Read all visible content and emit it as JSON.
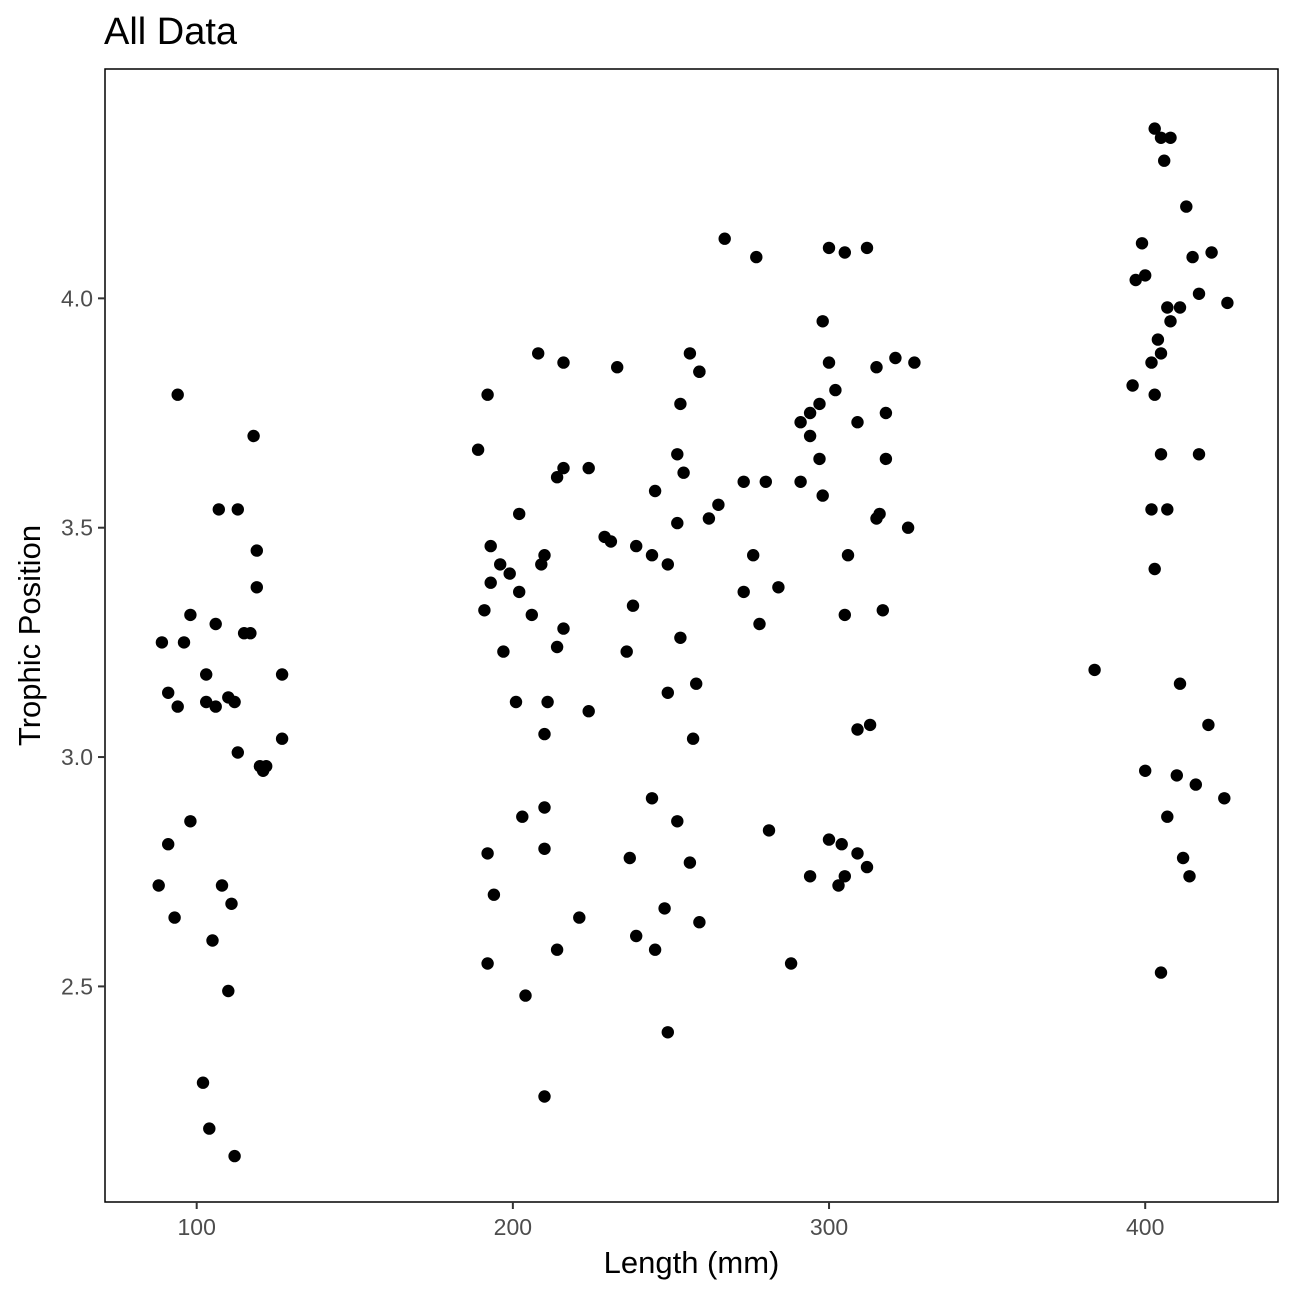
{
  "chart_data": {
    "type": "scatter",
    "title": "All Data",
    "xlabel": "Length (mm)",
    "ylabel": "Trophic Position",
    "xlim": [
      71,
      442
    ],
    "ylim": [
      2.03,
      4.5
    ],
    "xticks": [
      100,
      200,
      300,
      400
    ],
    "xtick_labels": [
      "100",
      "200",
      "300",
      "400"
    ],
    "yticks": [
      2.5,
      3.0,
      3.5,
      4.0
    ],
    "ytick_labels": [
      "2.5",
      "3.0",
      "3.5",
      "4.0"
    ],
    "grid": false,
    "point_color": "#000000",
    "series": [
      {
        "points": [
          [
            94,
            3.79
          ],
          [
            118,
            3.7
          ],
          [
            107,
            3.54
          ],
          [
            113,
            3.54
          ],
          [
            119,
            3.45
          ],
          [
            119,
            3.37
          ],
          [
            98,
            3.31
          ],
          [
            106,
            3.29
          ],
          [
            115,
            3.27
          ],
          [
            117,
            3.27
          ],
          [
            89,
            3.25
          ],
          [
            96,
            3.25
          ],
          [
            103,
            3.18
          ],
          [
            127,
            3.18
          ],
          [
            91,
            3.14
          ],
          [
            94,
            3.11
          ],
          [
            103,
            3.12
          ],
          [
            106,
            3.11
          ],
          [
            110,
            3.13
          ],
          [
            112,
            3.12
          ],
          [
            127,
            3.04
          ],
          [
            113,
            3.01
          ],
          [
            120,
            2.98
          ],
          [
            122,
            2.98
          ],
          [
            121,
            2.97
          ],
          [
            98,
            2.86
          ],
          [
            91,
            2.81
          ],
          [
            88,
            2.72
          ],
          [
            108,
            2.72
          ],
          [
            111,
            2.68
          ],
          [
            93,
            2.65
          ],
          [
            105,
            2.6
          ],
          [
            110,
            2.49
          ],
          [
            102,
            2.29
          ],
          [
            104,
            2.19
          ],
          [
            112,
            2.13
          ],
          [
            208,
            3.88
          ],
          [
            216,
            3.86
          ],
          [
            233,
            3.85
          ],
          [
            192,
            3.79
          ],
          [
            189,
            3.67
          ],
          [
            214,
            3.61
          ],
          [
            216,
            3.63
          ],
          [
            224,
            3.63
          ],
          [
            202,
            3.53
          ],
          [
            229,
            3.48
          ],
          [
            231,
            3.47
          ],
          [
            193,
            3.46
          ],
          [
            239,
            3.46
          ],
          [
            244,
            3.44
          ],
          [
            210,
            3.44
          ],
          [
            209,
            3.42
          ],
          [
            196,
            3.42
          ],
          [
            199,
            3.4
          ],
          [
            193,
            3.38
          ],
          [
            202,
            3.36
          ],
          [
            191,
            3.32
          ],
          [
            206,
            3.31
          ],
          [
            216,
            3.28
          ],
          [
            214,
            3.24
          ],
          [
            238,
            3.33
          ],
          [
            236,
            3.23
          ],
          [
            197,
            3.23
          ],
          [
            211,
            3.12
          ],
          [
            201,
            3.12
          ],
          [
            224,
            3.1
          ],
          [
            210,
            3.05
          ],
          [
            210,
            2.89
          ],
          [
            203,
            2.87
          ],
          [
            210,
            2.8
          ],
          [
            192,
            2.79
          ],
          [
            194,
            2.7
          ],
          [
            221,
            2.65
          ],
          [
            214,
            2.58
          ],
          [
            192,
            2.55
          ],
          [
            204,
            2.48
          ],
          [
            210,
            2.26
          ],
          [
            237,
            2.78
          ],
          [
            239,
            2.61
          ],
          [
            245,
            2.58
          ],
          [
            244,
            2.91
          ],
          [
            267,
            4.13
          ],
          [
            277,
            4.09
          ],
          [
            300,
            4.11
          ],
          [
            305,
            4.1
          ],
          [
            312,
            4.11
          ],
          [
            256,
            3.88
          ],
          [
            259,
            3.84
          ],
          [
            259,
            3.84
          ],
          [
            253,
            3.77
          ],
          [
            298,
            3.95
          ],
          [
            300,
            3.86
          ],
          [
            315,
            3.85
          ],
          [
            321,
            3.87
          ],
          [
            327,
            3.86
          ],
          [
            302,
            3.8
          ],
          [
            297,
            3.77
          ],
          [
            294,
            3.75
          ],
          [
            291,
            3.73
          ],
          [
            294,
            3.7
          ],
          [
            309,
            3.73
          ],
          [
            318,
            3.75
          ],
          [
            252,
            3.66
          ],
          [
            254,
            3.62
          ],
          [
            297,
            3.65
          ],
          [
            318,
            3.65
          ],
          [
            245,
            3.58
          ],
          [
            273,
            3.6
          ],
          [
            280,
            3.6
          ],
          [
            291,
            3.6
          ],
          [
            298,
            3.57
          ],
          [
            265,
            3.55
          ],
          [
            252,
            3.51
          ],
          [
            262,
            3.52
          ],
          [
            315,
            3.52
          ],
          [
            316,
            3.53
          ],
          [
            325,
            3.5
          ],
          [
            276,
            3.44
          ],
          [
            306,
            3.44
          ],
          [
            249,
            3.42
          ],
          [
            273,
            3.36
          ],
          [
            284,
            3.37
          ],
          [
            278,
            3.29
          ],
          [
            305,
            3.31
          ],
          [
            317,
            3.32
          ],
          [
            253,
            3.26
          ],
          [
            258,
            3.16
          ],
          [
            249,
            3.14
          ],
          [
            257,
            3.04
          ],
          [
            309,
            3.06
          ],
          [
            313,
            3.07
          ],
          [
            252,
            2.86
          ],
          [
            281,
            2.84
          ],
          [
            300,
            2.82
          ],
          [
            304,
            2.81
          ],
          [
            309,
            2.79
          ],
          [
            256,
            2.77
          ],
          [
            294,
            2.74
          ],
          [
            303,
            2.72
          ],
          [
            305,
            2.74
          ],
          [
            312,
            2.76
          ],
          [
            248,
            2.67
          ],
          [
            259,
            2.64
          ],
          [
            288,
            2.55
          ],
          [
            249,
            2.4
          ],
          [
            403,
            4.37
          ],
          [
            405,
            4.35
          ],
          [
            408,
            4.35
          ],
          [
            406,
            4.3
          ],
          [
            413,
            4.2
          ],
          [
            399,
            4.12
          ],
          [
            415,
            4.09
          ],
          [
            421,
            4.1
          ],
          [
            400,
            4.05
          ],
          [
            397,
            4.04
          ],
          [
            417,
            4.01
          ],
          [
            426,
            3.99
          ],
          [
            407,
            3.98
          ],
          [
            411,
            3.98
          ],
          [
            408,
            3.95
          ],
          [
            404,
            3.91
          ],
          [
            405,
            3.88
          ],
          [
            402,
            3.86
          ],
          [
            396,
            3.81
          ],
          [
            403,
            3.79
          ],
          [
            405,
            3.66
          ],
          [
            417,
            3.66
          ],
          [
            402,
            3.54
          ],
          [
            407,
            3.54
          ],
          [
            403,
            3.41
          ],
          [
            384,
            3.19
          ],
          [
            411,
            3.16
          ],
          [
            420,
            3.07
          ],
          [
            400,
            2.97
          ],
          [
            410,
            2.96
          ],
          [
            416,
            2.94
          ],
          [
            425,
            2.91
          ],
          [
            407,
            2.87
          ],
          [
            412,
            2.78
          ],
          [
            414,
            2.74
          ],
          [
            405,
            2.53
          ]
        ]
      }
    ]
  }
}
